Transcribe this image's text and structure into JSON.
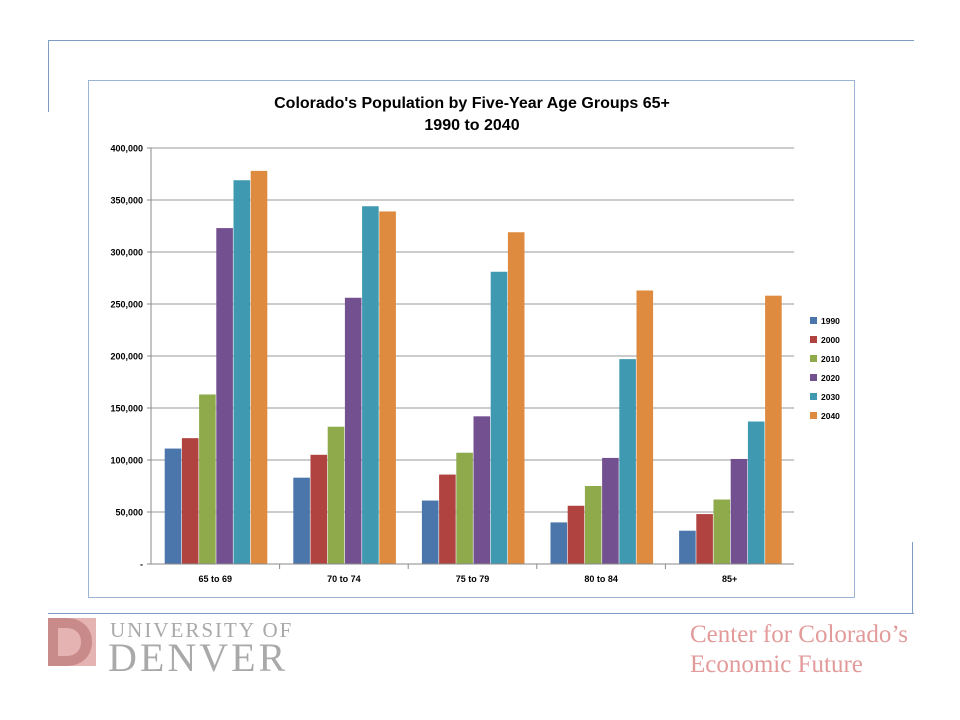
{
  "chart_data": {
    "type": "bar",
    "title": "Colorado's Population by Five-Year Age Groups 65+",
    "subtitle": "1990 to 2040",
    "categories": [
      "65 to 69",
      "70 to 74",
      "75 to 79",
      "80 to 84",
      "85+"
    ],
    "series": [
      {
        "name": "1990",
        "color": "#4a76ab",
        "values": [
          111000,
          83000,
          61000,
          40000,
          32000
        ]
      },
      {
        "name": "2000",
        "color": "#b0433f",
        "values": [
          121000,
          105000,
          86000,
          56000,
          48000
        ]
      },
      {
        "name": "2010",
        "color": "#8eaa4b",
        "values": [
          163000,
          132000,
          107000,
          75000,
          62000
        ]
      },
      {
        "name": "2020",
        "color": "#735090",
        "values": [
          323000,
          256000,
          142000,
          102000,
          101000
        ]
      },
      {
        "name": "2030",
        "color": "#3e99b1",
        "values": [
          369000,
          344000,
          281000,
          197000,
          137000
        ]
      },
      {
        "name": "2040",
        "color": "#de8b3f",
        "values": [
          378000,
          339000,
          319000,
          263000,
          258000
        ]
      }
    ],
    "ylim": [
      0,
      400000
    ],
    "yticks": [
      0,
      50000,
      100000,
      150000,
      200000,
      250000,
      300000,
      350000,
      400000
    ],
    "ytick_labels": [
      "-",
      "50,000",
      "100,000",
      "150,000",
      "200,000",
      "250,000",
      "300,000",
      "350,000",
      "400,000"
    ],
    "grid": true,
    "legend": "right"
  },
  "footer": {
    "university_line1": "UNIVERSITY OF",
    "university_line2": "DENVER",
    "center_line1": "Center for Colorado’s",
    "center_line2": "Economic Future"
  },
  "colors": {
    "frame": "#7f9cc4",
    "du_logo_dark": "#c98a8a",
    "du_logo_light": "#e6b3b3",
    "center_text": "#e29a9a"
  }
}
